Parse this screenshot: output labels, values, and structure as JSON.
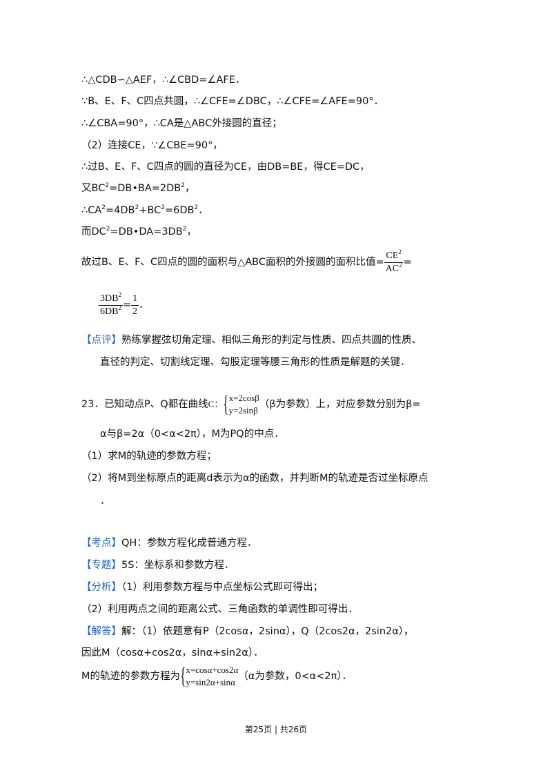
{
  "proof": {
    "l1": "∴△CDB∽△AEF，∴∠CBD=∠AFE．",
    "l2": "∵B、E、F、C四点共圆，∴∠CFE=∠DBC，∴∠CFE=∠AFE=90°．",
    "l3": "∴∠CBA=90°，∴CA是△ABC外接圆的直径；",
    "l4": "（2）连接CE，∵∠CBE=90°，",
    "l5": "∴过B、E、F、C四点的圆的直径为CE，由DB=BE，得CE=DC，",
    "l6a": "又BC",
    "l6b": "=DB•BA=2DB",
    "l6c": "，",
    "l7a": "∴CA",
    "l7b": "=4DB",
    "l7c": "+BC",
    "l7d": "=6DB",
    "l7e": "．",
    "l8a": "而DC",
    "l8b": "=DB•DA=3DB",
    "l8c": "，",
    "l9": "故过B、E、F、C四点的圆的面积与△ABC面积的外接圆的面积比值=",
    "sq": "2",
    "frac1_num": "CE",
    "frac1_den": "AC",
    "eq": "=",
    "frac2_num": "3DB",
    "frac2_den": "6DB",
    "frac3_num": "1",
    "frac3_den": "2",
    "end": "．"
  },
  "review": {
    "label": "【点评】",
    "text1": "熟练掌握弦切角定理、相似三角形的判定与性质、四点共圆的性质、",
    "text2": "直径的判定、切割线定理、勾股定理等腰三角形的性质是解题的关键．"
  },
  "q23": {
    "lead": "23．已知动点P、Q都在曲线",
    "curve": "C：",
    "eq_x": "x=2cosβ",
    "eq_y": "y=2sinβ",
    "tail": "（β为参数）上，对应参数分别为β=",
    "l2": "α与β=2α（0<α<2π），M为PQ的中点．",
    "p1": "（1）求M的轨迹的参数方程；",
    "p2": "（2）将M到坐标原点的距离d表示为α的函数，并判断M的轨迹是否过坐标原点",
    "p2end": "．"
  },
  "analysis": {
    "kaodian_label": "【考点】",
    "kaodian": "QH：参数方程化成普通方程．",
    "zhuanti_label": "【专题】",
    "zhuanti": "5S：坐标系和参数方程．",
    "fenxi_label": "【分析】",
    "fenxi1": "（1）利用参数方程与中点坐标公式即可得出；",
    "fenxi2": "（2）利用两点之间的距离公式、三角函数的单调性即可得出．",
    "jieda_label": "【解答】",
    "jieda1": "解：（1）依题意有P（2cosα，2sinα），Q（2cos2α，2sin2α），",
    "jieda2": "因此M（cosα+cos2α，sinα+sin2α）．",
    "jieda3": "M的轨迹的参数方程为",
    "m_x": "x=cosα+cos2α",
    "m_y": "y=sin2α+sinα",
    "jieda3_tail": "（α为参数，0<α<2π）．"
  },
  "footer": "第25页 | 共26页",
  "colors": {
    "label": "#1f5fc4",
    "text": "#111111"
  }
}
